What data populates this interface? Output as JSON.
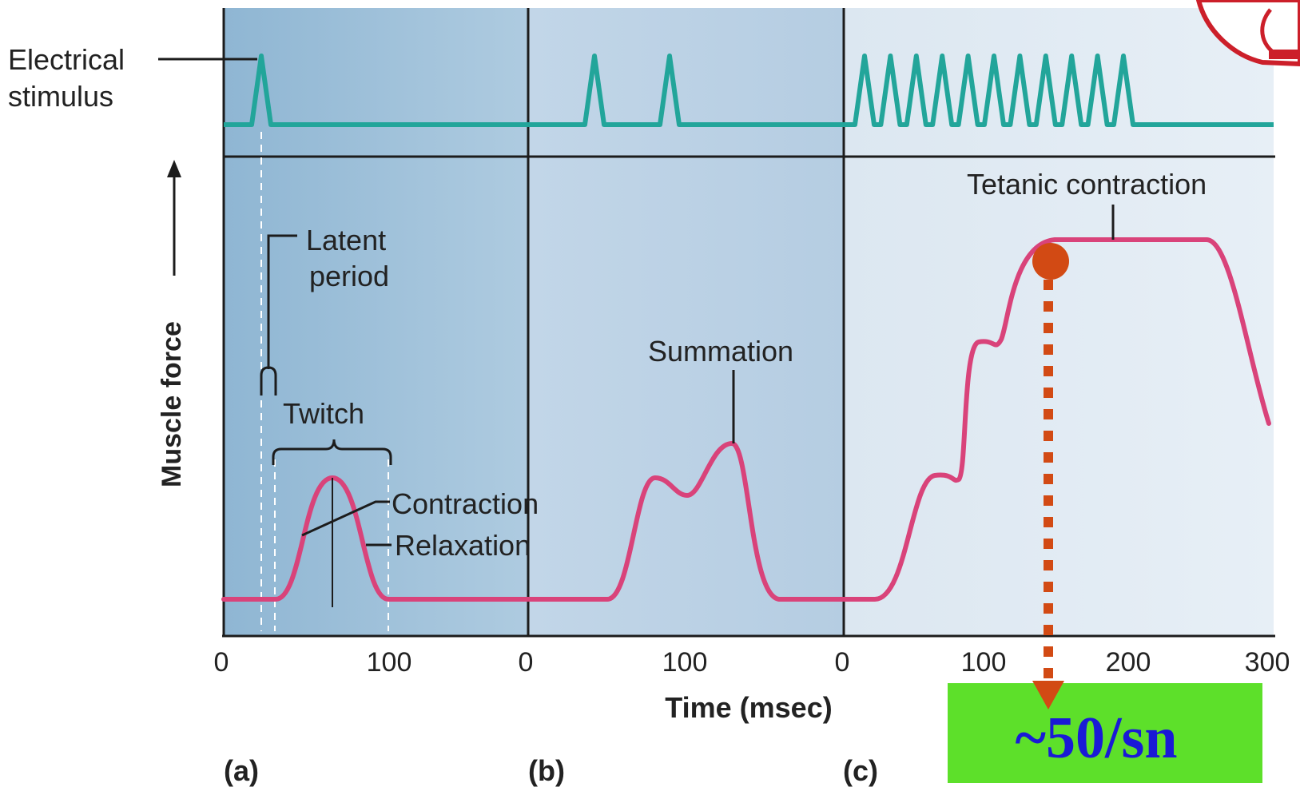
{
  "labels": {
    "electrical_stimulus_line1": "Electrical",
    "electrical_stimulus_line2": "stimulus",
    "muscle_force": "Muscle force",
    "latent_period_line1": "Latent",
    "latent_period_line2": "period",
    "twitch": "Twitch",
    "contraction": "Contraction",
    "relaxation": "Relaxation",
    "summation": "Summation",
    "tetanic_contraction": "Tetanic contraction",
    "time_axis": "Time (msec)"
  },
  "ticks": {
    "a": [
      "0",
      "100"
    ],
    "b": [
      "0",
      "100"
    ],
    "c": [
      "0",
      "100",
      "200",
      "300"
    ]
  },
  "panels": [
    "(a)",
    "(b)",
    "(c)"
  ],
  "answer_box": {
    "text": "~50/sn",
    "background": "#5de02a",
    "text_color": "#1a1ad6"
  },
  "colors": {
    "panel_a": "#a5c6dd",
    "panel_b": "#c9daea",
    "panel_c": "#e3ecf4",
    "stimulus_trace": "#22a59a",
    "force_trace": "#d9437a",
    "marker": "#d24a14"
  }
}
